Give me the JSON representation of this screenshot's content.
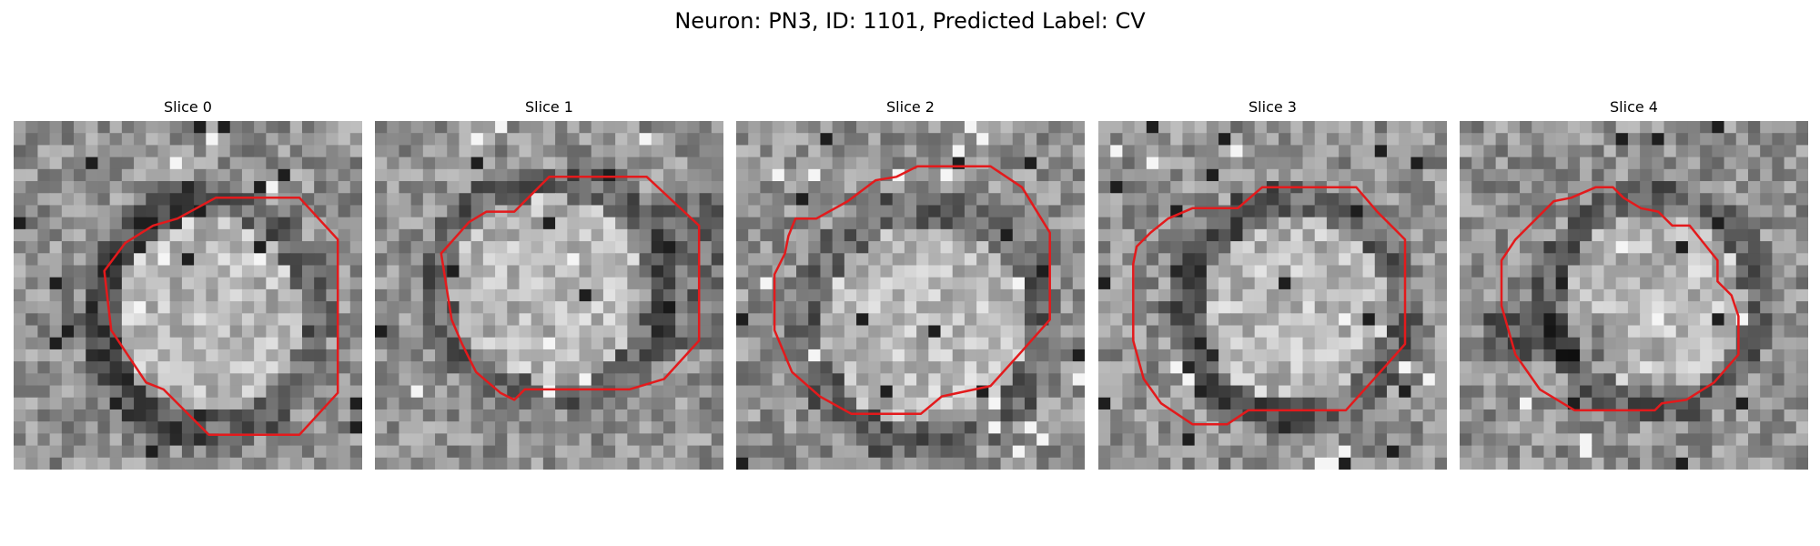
{
  "figure": {
    "title": "Neuron: PN3, ID: 1101, Predicted Label: CV"
  },
  "panels": [
    {
      "title": "Slice 0"
    },
    {
      "title": "Slice 1"
    },
    {
      "title": "Slice 2"
    },
    {
      "title": "Slice 3"
    },
    {
      "title": "Slice 4"
    }
  ],
  "colors": {
    "contour": "#e31a1c",
    "background": "#ffffff"
  }
}
